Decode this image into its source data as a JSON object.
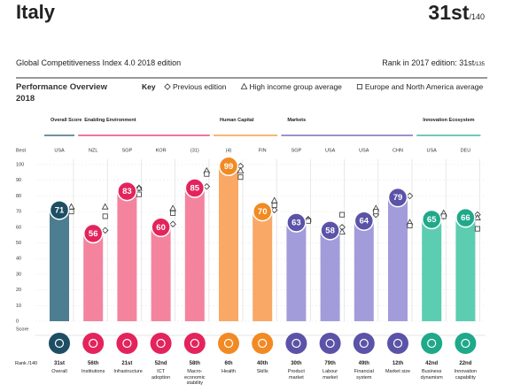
{
  "header": {
    "title": "Italy",
    "rank": "31st",
    "rank_total": "/140",
    "subtitle": "Global Competitiveness Index 4.0 2018 edition",
    "prev_rank": "Rank in 2017 edition: 31st",
    "prev_rank_total": "/135",
    "section": "Performance Overview",
    "year": "2018",
    "key": "Key"
  },
  "chart_data": {
    "type": "bar",
    "categories": [
      "Overall",
      "Institutions",
      "Infrastructure",
      "ICT adoption",
      "Macro-economic stability",
      "Health",
      "Skills",
      "Product market",
      "Labour market",
      "Financial system",
      "Market size",
      "Business dynamism",
      "Innovation capability"
    ],
    "values": [
      71,
      56,
      83,
      60,
      85,
      99,
      70,
      63,
      58,
      64,
      79,
      65,
      66
    ],
    "best_label": "Best",
    "best": [
      "USA",
      "NZL",
      "SGP",
      "KOR",
      "(31)",
      "(4)",
      "FIN",
      "SGP",
      "USA",
      "USA",
      "CHN",
      "USA",
      "DEU"
    ],
    "score_label": "Score",
    "rank_label": "Rank /140",
    "ranks": [
      "31st",
      "56th",
      "21st",
      "52nd",
      "58th",
      "6th",
      "40th",
      "30th",
      "79th",
      "49th",
      "12th",
      "42nd",
      "22nd"
    ],
    "groups": [
      {
        "name": "Overall Score",
        "color": "#1d4e63",
        "bar_color": "#4d7d90"
      },
      {
        "name": "Enabling Environment",
        "color": "#e3245c",
        "bar_color": "#f4849e"
      },
      {
        "name": "Human Capital",
        "color": "#f28a24",
        "bar_color": "#f9a866"
      },
      {
        "name": "Markets",
        "color": "#5b53a8",
        "bar_color": "#a39cda"
      },
      {
        "name": "Innovation Ecosystem",
        "color": "#1fa98a",
        "bar_color": "#5ccdb0"
      }
    ],
    "series": [
      {
        "name": "Previous edition",
        "marker": "diamond",
        "values": [
          72,
          58,
          85,
          62,
          86,
          99,
          71,
          65,
          60,
          68,
          80,
          67,
          68
        ]
      },
      {
        "name": "High income group average",
        "marker": "triangle",
        "values": [
          73,
          73,
          85,
          72,
          96,
          96,
          77,
          65,
          57,
          72,
          63,
          69,
          66
        ]
      },
      {
        "name": "Europe and North America average",
        "marker": "square",
        "values": [
          70,
          67,
          81,
          69,
          94,
          92,
          74,
          64,
          68,
          70,
          61,
          67,
          59
        ]
      }
    ],
    "ylim": [
      0,
      100
    ],
    "yticks": [
      0,
      10,
      20,
      30,
      40,
      50,
      60,
      70,
      80,
      90,
      100
    ],
    "grid": true
  }
}
